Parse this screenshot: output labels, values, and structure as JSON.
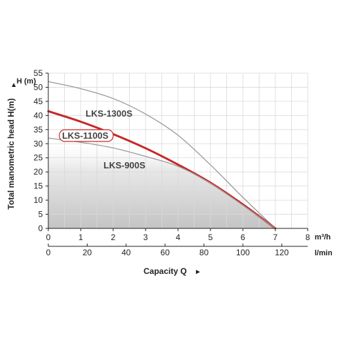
{
  "chart_data": {
    "type": "line",
    "ylabel": "Total manometric head H(m)",
    "ylabel_unit": "H (m)",
    "xlabel": "Capacity Q",
    "x_unit_top": "m³/h",
    "x_unit_bottom": "l/min",
    "xlim": [
      0,
      8
    ],
    "ylim": [
      0,
      55
    ],
    "x_ticks_m3h": [
      "0",
      "1",
      "2",
      "3",
      "4",
      "5",
      "6",
      "7",
      "8"
    ],
    "x_ticks_lmin": [
      "0",
      "20",
      "40",
      "60",
      "80",
      "100",
      "120"
    ],
    "x_ticks_lmin_values": [
      0,
      20,
      40,
      60,
      80,
      100,
      120
    ],
    "y_ticks": [
      "0",
      "5",
      "10",
      "15",
      "20",
      "25",
      "30",
      "35",
      "40",
      "45",
      "50",
      "55"
    ],
    "grid": true,
    "series": [
      {
        "name": "LKS-1300S",
        "color": "#9a9a9a",
        "x": [
          0,
          1,
          2,
          3,
          4,
          5,
          6,
          7
        ],
        "y": [
          52,
          49.5,
          46,
          40.5,
          33,
          22.5,
          11,
          0
        ]
      },
      {
        "name": "LKS-1100S",
        "color": "#c62828",
        "highlight": true,
        "x": [
          0,
          1,
          2,
          3,
          4,
          5,
          6,
          7
        ],
        "y": [
          41.5,
          37.8,
          33.4,
          28.4,
          22.6,
          16.2,
          8.5,
          0
        ]
      },
      {
        "name": "LKS-900S",
        "color": "#9a9a9a",
        "x": [
          0,
          1,
          2,
          3,
          4,
          5,
          6,
          7
        ],
        "y": [
          32,
          30.5,
          28.5,
          25.5,
          22,
          16,
          8.2,
          0
        ]
      }
    ]
  }
}
